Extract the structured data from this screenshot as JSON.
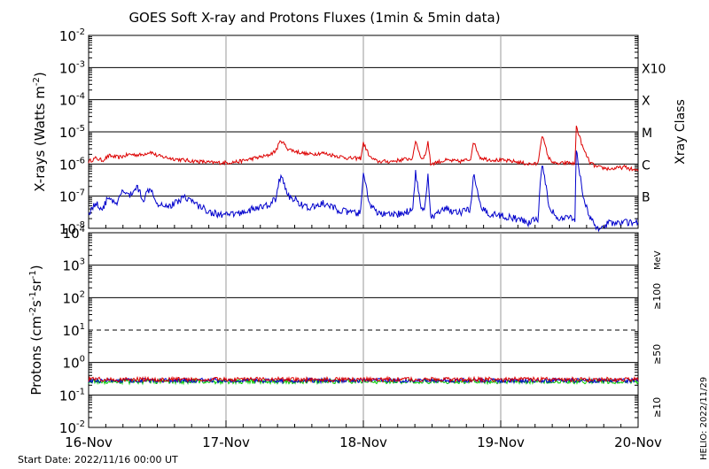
{
  "title": "GOES Soft X-ray and Protons Fluxes   (1min & 5min data)",
  "footer": {
    "start_date": "Start Date: 2022/11/16 00:00 UT",
    "credit": "HELIO: 2022/11/29"
  },
  "colors": {
    "red": "#dd0000",
    "blue": "#0000cc",
    "green": "#00cc00",
    "grid": "#000000",
    "day_line": "#9a9a9a"
  },
  "chart_data": [
    {
      "type": "line",
      "panel": "xray",
      "ylabel_parts": [
        "X-rays (Watts m",
        "-2",
        ")"
      ],
      "yscale": "log",
      "ylim": [
        1e-08,
        0.01
      ],
      "ytick_base": "10",
      "ytick_exponents": [
        "-8",
        "-7",
        "-6",
        "-5",
        "-4",
        "-3",
        "-2"
      ],
      "ytick_values": [
        1e-08,
        1e-07,
        1e-06,
        1e-05,
        0.0001,
        0.001,
        0.01
      ],
      "right_label": "Xray Class",
      "classes": [
        {
          "label": "X10",
          "value": 0.001
        },
        {
          "label": "X",
          "value": 0.0001
        },
        {
          "label": "M",
          "value": 1e-05
        },
        {
          "label": "C",
          "value": 1e-06
        },
        {
          "label": "B",
          "value": 1e-07
        }
      ],
      "grid": true,
      "x_categories": [
        "16-Nov",
        "17-Nov",
        "18-Nov",
        "19-Nov",
        "20-Nov"
      ],
      "series": [
        {
          "color": "red",
          "x_day": [
            0,
            0.05,
            0.1,
            0.15,
            0.22,
            0.3,
            0.38,
            0.45,
            0.5,
            0.6,
            0.7,
            0.8,
            0.9,
            1.0,
            1.1,
            1.2,
            1.3,
            1.36,
            1.4,
            1.45,
            1.5,
            1.6,
            1.7,
            1.8,
            1.9,
            1.98,
            2.0,
            2.05,
            2.1,
            2.2,
            2.3,
            2.36,
            2.38,
            2.42,
            2.45,
            2.47,
            2.49,
            2.52,
            2.6,
            2.7,
            2.78,
            2.8,
            2.85,
            2.9,
            3.0,
            3.1,
            3.2,
            3.27,
            3.3,
            3.35,
            3.4,
            3.5,
            3.54,
            3.55,
            3.6,
            3.65,
            3.7,
            3.8,
            3.9,
            4.0
          ],
          "y": [
            1.2e-06,
            1.5e-06,
            1.3e-06,
            1.8e-06,
            1.6e-06,
            2e-06,
            1.9e-06,
            2.4e-06,
            1.8e-06,
            1.5e-06,
            1.3e-06,
            1.2e-06,
            1.1e-06,
            1.1e-06,
            1.2e-06,
            1.5e-06,
            1.8e-06,
            2.5e-06,
            5.5e-06,
            3e-06,
            2.5e-06,
            2e-06,
            2.2e-06,
            1.8e-06,
            1.5e-06,
            1.5e-06,
            4.5e-06,
            1.6e-06,
            1.2e-06,
            1.2e-06,
            1.4e-06,
            1.5e-06,
            5.5e-06,
            1.5e-06,
            1.8e-06,
            5e-06,
            1e-06,
            1.1e-06,
            1.3e-06,
            1.2e-06,
            1.4e-06,
            5e-06,
            1.6e-06,
            1.4e-06,
            1.3e-06,
            1.2e-06,
            1e-06,
            1e-06,
            8e-06,
            1.5e-06,
            1e-06,
            1.1e-06,
            1e-06,
            1.5e-05,
            3e-06,
            1.1e-06,
            8e-07,
            7e-07,
            8e-07,
            6e-07
          ]
        },
        {
          "color": "blue",
          "x_day": [
            0,
            0.05,
            0.1,
            0.15,
            0.2,
            0.25,
            0.3,
            0.35,
            0.4,
            0.45,
            0.5,
            0.6,
            0.7,
            0.8,
            0.9,
            1.0,
            1.1,
            1.2,
            1.3,
            1.36,
            1.4,
            1.45,
            1.5,
            1.6,
            1.7,
            1.8,
            1.9,
            1.98,
            2.0,
            2.05,
            2.1,
            2.2,
            2.3,
            2.36,
            2.38,
            2.42,
            2.45,
            2.47,
            2.49,
            2.52,
            2.6,
            2.7,
            2.78,
            2.8,
            2.85,
            2.9,
            3.0,
            3.1,
            3.2,
            3.27,
            3.3,
            3.35,
            3.4,
            3.5,
            3.54,
            3.55,
            3.6,
            3.65,
            3.7,
            3.8,
            3.9,
            4.0
          ],
          "y": [
            3e-08,
            6e-08,
            4e-08,
            1e-07,
            5e-08,
            1.5e-07,
            1e-07,
            2e-07,
            8e-08,
            2e-07,
            6e-08,
            5e-08,
            1e-07,
            5e-08,
            3e-08,
            2.5e-08,
            3e-08,
            4e-08,
            5e-08,
            8e-08,
            5e-07,
            1e-07,
            8e-08,
            4e-08,
            6e-08,
            4e-08,
            3e-08,
            3e-08,
            5e-07,
            5e-08,
            3e-08,
            2.5e-08,
            3e-08,
            4e-08,
            6e-07,
            4e-08,
            5e-08,
            5e-07,
            2e-08,
            2.5e-08,
            4e-08,
            3e-08,
            4e-08,
            5e-07,
            5e-08,
            3e-08,
            2.5e-08,
            2e-08,
            1.5e-08,
            2e-08,
            1e-06,
            6e-08,
            2e-08,
            2e-08,
            2e-08,
            3e-06,
            1e-07,
            2e-08,
            1e-08,
            1.5e-08,
            1.5e-08,
            1.5e-08
          ]
        }
      ]
    },
    {
      "type": "line",
      "panel": "protons",
      "ylabel_parts": [
        "Protons (cm",
        "-2",
        "s",
        "-1",
        "sr",
        "-1",
        ")"
      ],
      "yscale": "log",
      "ylim": [
        0.01,
        10000
      ],
      "ytick_base": "10",
      "ytick_exponents": [
        "-2",
        "-1",
        "0",
        "1",
        "2",
        "3",
        "4"
      ],
      "ytick_values": [
        0.01,
        0.1,
        1,
        10,
        100,
        1000,
        10000
      ],
      "dashed_line_value": 10,
      "grid": true,
      "energy_unit": "MeV",
      "x_categories": [
        "16-Nov",
        "17-Nov",
        "18-Nov",
        "19-Nov",
        "20-Nov"
      ],
      "series": [
        {
          "label": "≥10",
          "color": "red",
          "level": 0.3
        },
        {
          "label": "≥50",
          "color": "blue",
          "level": 0.28
        },
        {
          "label": "≥100",
          "color": "green",
          "level": 0.26
        }
      ]
    }
  ]
}
